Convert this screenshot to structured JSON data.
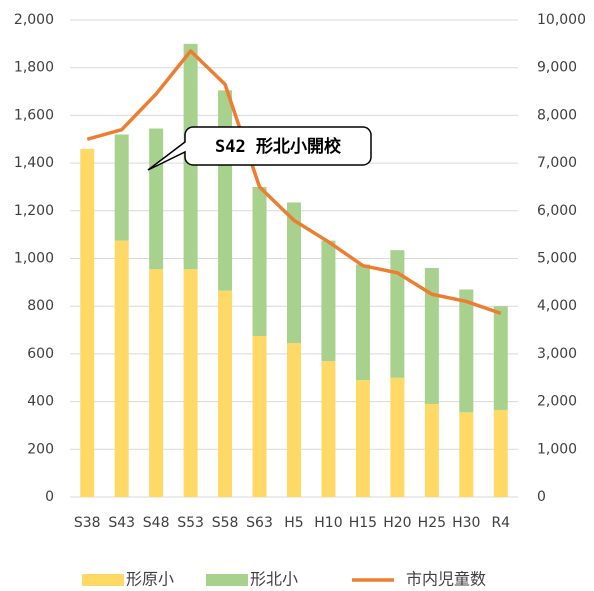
{
  "chart_data": {
    "type": "bar",
    "stacked": true,
    "categories": [
      "S38",
      "S43",
      "S48",
      "S53",
      "S58",
      "S63",
      "H5",
      "H10",
      "H15",
      "H20",
      "H25",
      "H30",
      "R4"
    ],
    "series": [
      {
        "name": "形原小",
        "color": "#FFD966",
        "values": [
          1460,
          1075,
          955,
          955,
          865,
          675,
          645,
          570,
          490,
          500,
          390,
          355,
          365
        ]
      },
      {
        "name": "形北小",
        "color": "#A9D18E",
        "values": [
          0,
          445,
          590,
          945,
          840,
          625,
          590,
          505,
          485,
          535,
          570,
          515,
          435
        ]
      },
      {
        "name": "市内児童数",
        "color": "#ED7D31",
        "type": "line",
        "axis": "y2",
        "values": [
          7500,
          7700,
          8450,
          9350,
          8650,
          6500,
          5800,
          5350,
          4850,
          4700,
          4250,
          4100,
          3850
        ]
      }
    ],
    "ylim": [
      0,
      2000
    ],
    "yticks": [
      0,
      200,
      400,
      600,
      800,
      {
        "value": 1000,
        "label": "1,000"
      },
      {
        "value": 1200,
        "label": "1,200"
      },
      {
        "value": 1400,
        "label": "1,400"
      },
      {
        "value": 1600,
        "label": "1,600"
      },
      {
        "value": 1800,
        "label": "1,800"
      },
      {
        "value": 2000,
        "label": "2,000"
      }
    ],
    "y2lim": [
      0,
      10000
    ],
    "y2ticks": [
      0,
      {
        "value": 1000,
        "label": "1,000"
      },
      {
        "value": 2000,
        "label": "2,000"
      },
      {
        "value": 3000,
        "label": "3,000"
      },
      {
        "value": 4000,
        "label": "4,000"
      },
      {
        "value": 5000,
        "label": "5,000"
      },
      {
        "value": 6000,
        "label": "6,000"
      },
      {
        "value": 7000,
        "label": "7,000"
      },
      {
        "value": 8000,
        "label": "8,000"
      },
      {
        "value": 9000,
        "label": "9,000"
      },
      {
        "value": 10000,
        "label": "10,000"
      }
    ],
    "grid": true,
    "legend": "bottom",
    "annotation": "S42 形北小開校"
  }
}
